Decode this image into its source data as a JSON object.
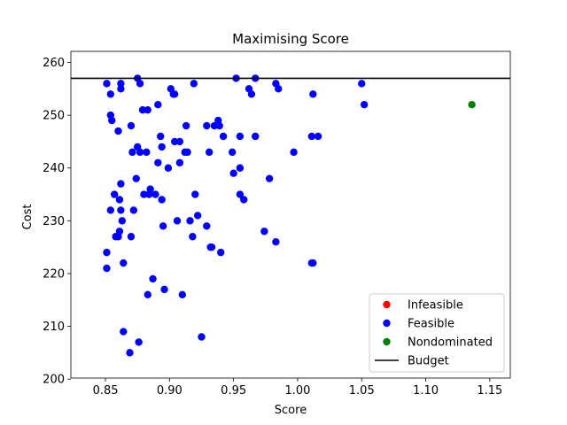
{
  "chart_data": {
    "type": "scatter",
    "title": "Maximising Score",
    "xlabel": "Score",
    "ylabel": "Cost",
    "xlim": [
      0.823,
      1.166
    ],
    "ylim": [
      200.2,
      262.1
    ],
    "xticks": [
      0.85,
      0.9,
      0.95,
      1.0,
      1.05,
      1.1,
      1.15
    ],
    "xtick_labels": [
      "0.85",
      "0.90",
      "0.95",
      "1.00",
      "1.05",
      "1.10",
      "1.15"
    ],
    "yticks": [
      200,
      210,
      220,
      230,
      240,
      250,
      260
    ],
    "ytick_labels": [
      "200",
      "210",
      "220",
      "230",
      "240",
      "250",
      "260"
    ],
    "grid": false,
    "legend_position": "bottom-right",
    "budget": 257,
    "series": [
      {
        "name": "Infeasible",
        "color": "#ff0000",
        "x": [],
        "y": []
      },
      {
        "name": "Feasible",
        "color": "#0000ff",
        "x": [
          0.851,
          0.862,
          0.875,
          0.877,
          0.901,
          0.919,
          0.952,
          0.967,
          0.983,
          0.985,
          1.05,
          0.854,
          0.862,
          0.903,
          0.904,
          0.964,
          0.962,
          1.012,
          0.891,
          1.052,
          0.879,
          0.883,
          0.854,
          0.855,
          0.938,
          0.935,
          0.913,
          0.87,
          0.929,
          0.939,
          0.86,
          0.893,
          0.904,
          0.908,
          0.942,
          0.955,
          0.967,
          1.011,
          1.016,
          0.875,
          0.894,
          0.877,
          0.871,
          0.882,
          0.912,
          0.914,
          0.931,
          0.949,
          0.997,
          0.891,
          0.908,
          0.899,
          0.955,
          0.95,
          0.874,
          0.978,
          0.862,
          0.885,
          0.884,
          0.88,
          0.857,
          0.889,
          0.92,
          0.955,
          0.894,
          0.861,
          0.958,
          0.854,
          0.872,
          0.862,
          0.863,
          0.861,
          0.906,
          0.916,
          0.922,
          0.895,
          0.929,
          0.86,
          0.974,
          0.858,
          0.87,
          0.918,
          0.983,
          0.932,
          0.933,
          0.851,
          0.94,
          0.864,
          1.011,
          1.012,
          0.851,
          0.887,
          0.896,
          0.883,
          0.91,
          0.864,
          0.925,
          0.876,
          0.869
        ],
        "y": [
          256,
          256,
          257,
          256,
          255,
          256,
          257,
          257,
          256,
          255,
          256,
          254,
          255,
          254,
          254,
          254,
          255,
          254,
          252,
          252,
          251,
          251,
          250,
          249,
          249,
          248,
          248,
          248,
          248,
          248,
          247,
          246,
          245,
          245,
          246,
          246,
          246,
          246,
          246,
          244,
          244,
          243,
          243,
          243,
          243,
          243,
          243,
          243,
          243,
          241,
          241,
          240,
          240,
          239,
          238,
          238,
          237,
          236,
          235,
          235,
          235,
          235,
          235,
          235,
          234,
          234,
          234,
          232,
          232,
          232,
          230,
          228,
          230,
          230,
          231,
          229,
          229,
          227,
          228,
          227,
          227,
          227,
          226,
          225,
          225,
          224,
          224,
          222,
          222,
          222,
          221,
          219,
          217,
          216,
          216,
          209,
          208,
          207,
          205
        ]
      },
      {
        "name": "Nondominated",
        "color": "#008000",
        "x": [
          1.136
        ],
        "y": [
          252
        ]
      },
      {
        "name": "Budget",
        "color": "#000000",
        "type": "hline"
      }
    ]
  }
}
